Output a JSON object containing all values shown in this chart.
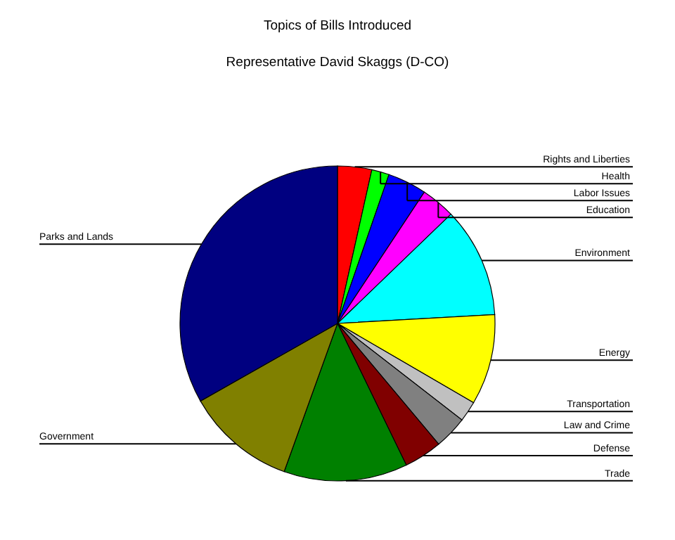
{
  "chart_data": {
    "type": "pie",
    "title": "Topics of Bills Introduced",
    "subtitle": "Representative David Skaggs (D-CO)",
    "categories": [
      "Rights and Liberties",
      "Health",
      "Labor Issues",
      "Education",
      "Environment",
      "Energy",
      "Transportation",
      "Law and Crime",
      "Defense",
      "Trade",
      "Government",
      "Parks and Lands"
    ],
    "values": [
      3.5,
      1.8,
      4,
      3.5,
      11.3,
      9.3,
      2.1,
      3.4,
      3.9,
      12.7,
      11.3,
      33.2
    ],
    "colors": [
      "#ff0000",
      "#00ff00",
      "#0000ff",
      "#ff00ff",
      "#00ffff",
      "#ffff00",
      "#c0c0c0",
      "#808080",
      "#800000",
      "#008000",
      "#808000",
      "#000080"
    ]
  }
}
